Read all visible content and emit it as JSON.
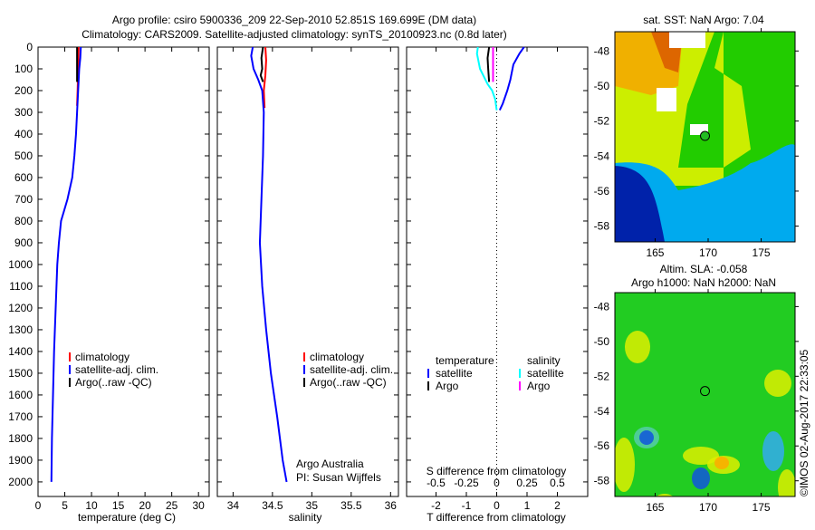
{
  "title_line1": "Argo profile: csiro 5900336_209 22-Sep-2010 52.851S 169.699E (DM data)",
  "title_line2": "Climatology: CARS2009. Satellite-adjusted climatology: synTS_20100923.nc (0.8d later)",
  "credit": "Argo Australia",
  "pi": "PI: Susan Wijffels",
  "stamp": "©IMOS 02-Aug-2017 22:33:05",
  "colors": {
    "climatology": "#ff0000",
    "satellite": "#0000ff",
    "argo": "#000000",
    "sal_satellite": "#00ffff",
    "sal_argo": "#ff00ff"
  },
  "chart_data": [
    {
      "type": "line",
      "id": "temperature",
      "xlabel": "temperature (deg C)",
      "xlim": [
        0,
        32
      ],
      "ylim": [
        0,
        2067
      ],
      "xticks": [
        0,
        5,
        10,
        15,
        20,
        25,
        30
      ],
      "yticks": [
        0,
        100,
        200,
        300,
        400,
        500,
        600,
        700,
        800,
        900,
        1000,
        1100,
        1200,
        1300,
        1400,
        1500,
        1600,
        1700,
        1800,
        1900,
        2000
      ],
      "legend": [
        "climatology",
        "satellite-adj. clim.",
        "Argo(..raw -QC)"
      ],
      "series": [
        {
          "name": "climatology",
          "color": "#ff0000",
          "points": [
            [
              7.6,
              0
            ],
            [
              7.5,
              100
            ],
            [
              7.4,
              200
            ],
            [
              7.3,
              270
            ]
          ]
        },
        {
          "name": "satellite-adj. clim.",
          "color": "#0000ff",
          "points": [
            [
              8.0,
              0
            ],
            [
              7.9,
              50
            ],
            [
              7.7,
              100
            ],
            [
              7.5,
              200
            ],
            [
              7.3,
              300
            ],
            [
              7.1,
              400
            ],
            [
              6.8,
              500
            ],
            [
              6.4,
              600
            ],
            [
              5.5,
              700
            ],
            [
              4.3,
              800
            ],
            [
              3.9,
              900
            ],
            [
              3.6,
              1000
            ],
            [
              3.3,
              1200
            ],
            [
              3.0,
              1400
            ],
            [
              2.8,
              1600
            ],
            [
              2.6,
              1800
            ],
            [
              2.5,
              2000
            ]
          ]
        },
        {
          "name": "Argo(..raw -QC)",
          "color": "#000000",
          "points": [
            [
              7.3,
              0
            ],
            [
              7.3,
              80
            ],
            [
              7.3,
              160
            ]
          ]
        }
      ]
    },
    {
      "type": "line",
      "id": "salinity",
      "xlabel": "salinity",
      "xlim": [
        33.8,
        36.1
      ],
      "ylim": [
        0,
        2067
      ],
      "xticks": [
        34,
        34.5,
        35,
        35.5,
        36
      ],
      "legend": [
        "climatology",
        "satellite-adj. clim.",
        "Argo(..raw -QC)"
      ],
      "series": [
        {
          "name": "climatology",
          "color": "#ff0000",
          "points": [
            [
              34.41,
              0
            ],
            [
              34.42,
              60
            ],
            [
              34.41,
              130
            ],
            [
              34.39,
              200
            ],
            [
              34.4,
              280
            ]
          ]
        },
        {
          "name": "satellite-adj. clim.",
          "color": "#0000ff",
          "points": [
            [
              34.25,
              0
            ],
            [
              34.23,
              40
            ],
            [
              34.26,
              100
            ],
            [
              34.32,
              150
            ],
            [
              34.37,
              200
            ],
            [
              34.39,
              300
            ],
            [
              34.38,
              500
            ],
            [
              34.36,
              700
            ],
            [
              34.34,
              900
            ],
            [
              34.37,
              1100
            ],
            [
              34.42,
              1300
            ],
            [
              34.48,
              1500
            ],
            [
              34.56,
              1700
            ],
            [
              34.63,
              1900
            ],
            [
              34.68,
              2000
            ]
          ]
        },
        {
          "name": "Argo(..raw -QC)",
          "color": "#000000",
          "points": [
            [
              34.38,
              0
            ],
            [
              34.36,
              50
            ],
            [
              34.37,
              100
            ],
            [
              34.35,
              130
            ],
            [
              34.38,
              160
            ]
          ]
        }
      ]
    },
    {
      "type": "line",
      "id": "difference",
      "xlabel": "T difference from climatology",
      "xlabel2": "S difference from climatology",
      "xlim": [
        -2.97,
        3.0
      ],
      "ylim": [
        0,
        2067
      ],
      "xticks": [
        -2,
        -1,
        0,
        1,
        2
      ],
      "sticks": [
        "-0.5",
        "-0.25",
        "0",
        "0.25",
        "0.5"
      ],
      "sticks_values": [
        -2,
        -1,
        0,
        1,
        2
      ],
      "legend_headers": [
        "temperature",
        "salinity"
      ],
      "legend": [
        "satellite",
        "Argo",
        "satellite",
        "Argo"
      ],
      "series": [
        {
          "name": "temperature satellite",
          "color": "#0000ff",
          "points": [
            [
              0.9,
              0
            ],
            [
              0.75,
              30
            ],
            [
              0.55,
              80
            ],
            [
              0.45,
              150
            ],
            [
              0.35,
              200
            ],
            [
              0.2,
              260
            ],
            [
              0.1,
              290
            ]
          ]
        },
        {
          "name": "temperature Argo",
          "color": "#000000",
          "points": [
            [
              -0.25,
              0
            ],
            [
              -0.3,
              50
            ],
            [
              -0.28,
              100
            ],
            [
              -0.25,
              160
            ]
          ]
        },
        {
          "name": "salinity satellite",
          "color": "#00ffff",
          "points": [
            [
              -0.62,
              0
            ],
            [
              -0.65,
              30
            ],
            [
              -0.55,
              100
            ],
            [
              -0.3,
              170
            ],
            [
              -0.15,
              200
            ],
            [
              -0.05,
              240
            ],
            [
              0,
              290
            ]
          ]
        },
        {
          "name": "salinity Argo",
          "color": "#ff00ff",
          "points": [
            [
              -0.12,
              0
            ],
            [
              -0.12,
              80
            ],
            [
              -0.12,
              160
            ]
          ]
        }
      ]
    },
    {
      "type": "heatmap",
      "id": "sst_map",
      "title": "sat. SST: NaN Argo: 7.04",
      "xlim": [
        161.2,
        178.2
      ],
      "ylim": [
        -58.9,
        -46.9
      ],
      "xticks": [
        165,
        170,
        175
      ],
      "yticks": [
        -48,
        -50,
        -52,
        -54,
        -56,
        -58
      ],
      "argo_position": [
        169.7,
        -52.85
      ]
    },
    {
      "type": "heatmap",
      "id": "sla_map",
      "title": "Altim. SLA: -0.058",
      "title2": "Argo h1000: NaN h2000: NaN",
      "xlim": [
        161.2,
        178.2
      ],
      "ylim": [
        -58.9,
        -47.2
      ],
      "xticks": [
        165,
        170,
        175
      ],
      "yticks": [
        -48,
        -50,
        -52,
        -54,
        -56,
        -58
      ],
      "argo_position": [
        169.7,
        -52.85
      ]
    }
  ]
}
